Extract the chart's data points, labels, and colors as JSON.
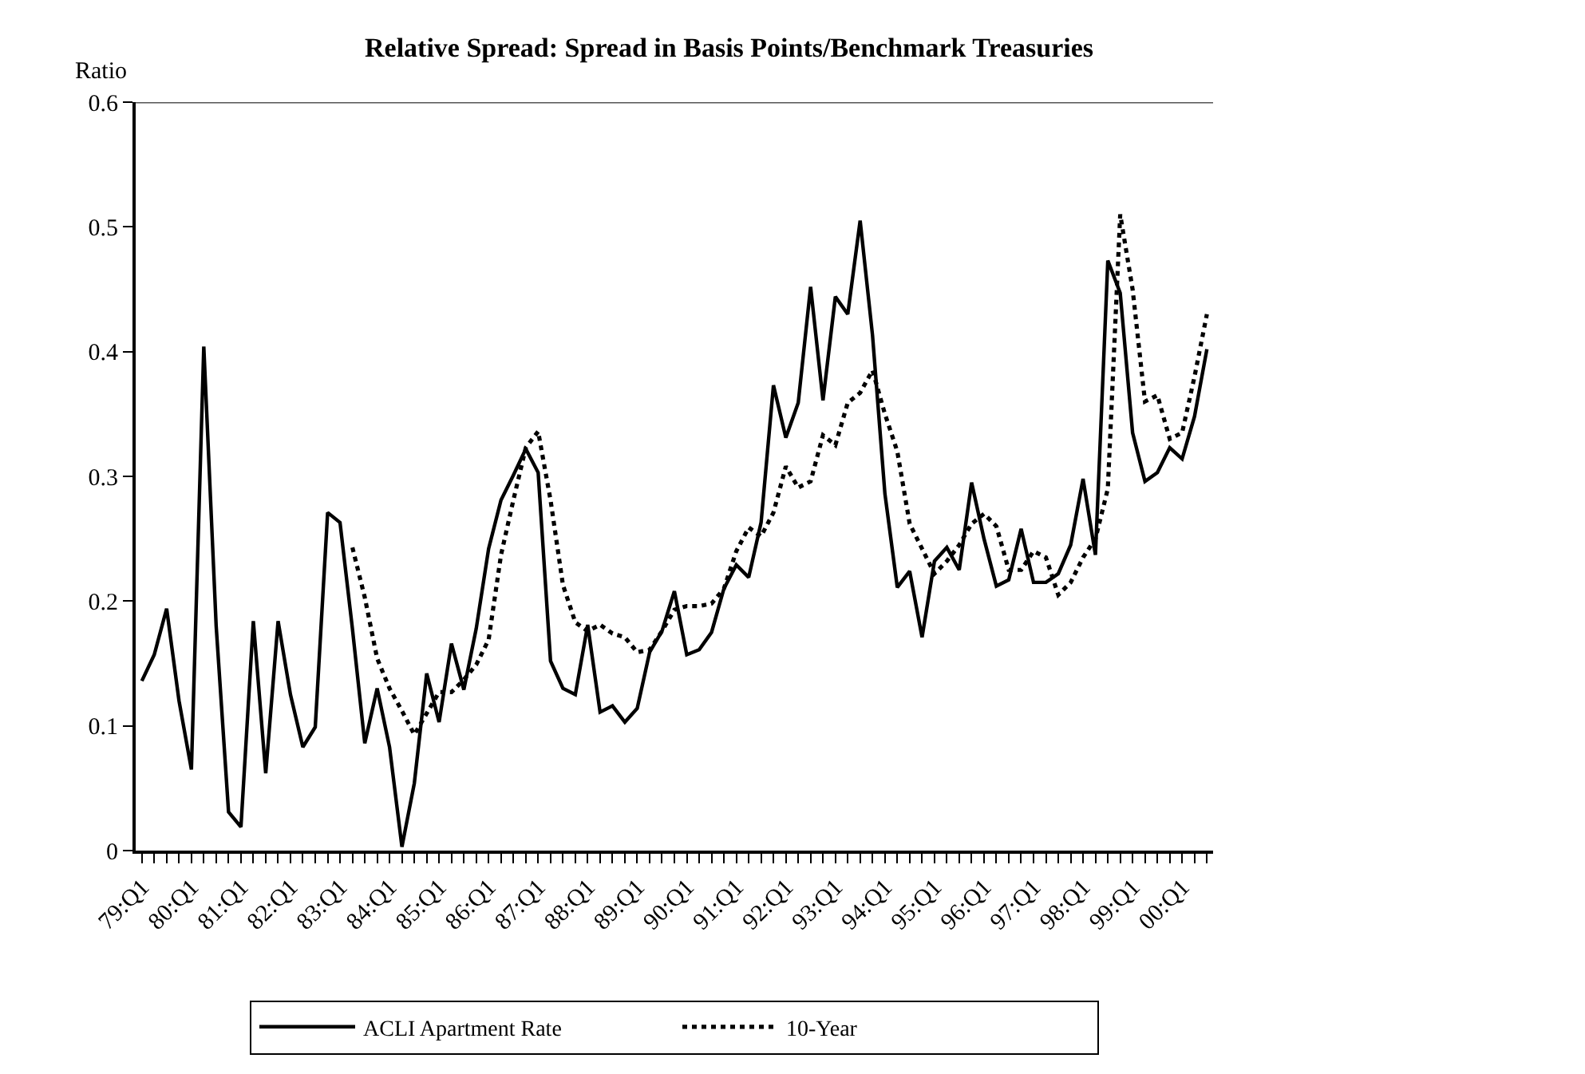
{
  "chart_data": {
    "type": "line",
    "title": "Relative Spread: Spread in Basis Points/Benchmark Treasuries",
    "ylabel": "Ratio",
    "categories": [
      "79:Q1",
      null,
      null,
      null,
      "80:Q1",
      null,
      null,
      null,
      "81:Q1",
      null,
      null,
      null,
      "82:Q1",
      null,
      null,
      null,
      "83:Q1",
      null,
      null,
      null,
      "84:Q1",
      null,
      null,
      null,
      "85:Q1",
      null,
      null,
      null,
      "86:Q1",
      null,
      null,
      null,
      "87:Q1",
      null,
      null,
      null,
      "88:Q1",
      null,
      null,
      null,
      "89:Q1",
      null,
      null,
      null,
      "90:Q1",
      null,
      null,
      null,
      "91:Q1",
      null,
      null,
      null,
      "92:Q1",
      null,
      null,
      null,
      "93:Q1",
      null,
      null,
      null,
      "94:Q1",
      null,
      null,
      null,
      "95:Q1",
      null,
      null,
      null,
      "96:Q1",
      null,
      null,
      null,
      "97:Q1",
      null,
      null,
      null,
      "98:Q1",
      null,
      null,
      null,
      "99:Q1",
      null,
      null,
      null,
      "00:Q1",
      null,
      null
    ],
    "series": [
      {
        "name": "ACLI Apartment Rate",
        "color": "#000000",
        "line_style": "solid",
        "values": [
          0.136,
          0.157,
          0.194,
          0.12,
          0.065,
          0.404,
          0.18,
          0.031,
          0.019,
          0.184,
          0.062,
          0.184,
          0.125,
          0.083,
          0.099,
          0.271,
          0.263,
          0.178,
          0.086,
          0.13,
          0.083,
          0.003,
          0.054,
          0.142,
          0.103,
          0.166,
          0.129,
          0.178,
          0.242,
          0.281,
          0.301,
          0.322,
          0.303,
          0.152,
          0.13,
          0.125,
          0.181,
          0.111,
          0.116,
          0.103,
          0.114,
          0.159,
          0.176,
          0.208,
          0.157,
          0.161,
          0.175,
          0.21,
          0.229,
          0.219,
          0.263,
          0.373,
          0.331,
          0.359,
          0.452,
          0.361,
          0.444,
          0.43,
          0.505,
          0.413,
          0.286,
          0.211,
          0.224,
          0.171,
          0.232,
          0.243,
          0.225,
          0.295,
          0.25,
          0.212,
          0.217,
          0.258,
          0.215,
          0.215,
          0.222,
          0.245,
          0.298,
          0.237,
          0.473,
          0.447,
          0.335,
          0.296,
          0.303,
          0.323,
          0.314,
          0.348,
          0.402
        ]
      },
      {
        "name": "10-Year",
        "color": "#000000",
        "line_style": "dotted",
        "values": [
          null,
          null,
          null,
          null,
          null,
          null,
          null,
          null,
          null,
          null,
          null,
          null,
          null,
          null,
          null,
          null,
          null,
          0.243,
          0.203,
          0.154,
          0.13,
          0.112,
          0.093,
          0.11,
          0.127,
          0.127,
          0.137,
          0.149,
          0.169,
          0.237,
          0.281,
          0.323,
          0.336,
          0.281,
          0.213,
          0.183,
          0.176,
          0.181,
          0.174,
          0.171,
          0.159,
          0.161,
          0.176,
          0.193,
          0.196,
          0.196,
          0.198,
          0.21,
          0.24,
          0.259,
          0.252,
          0.271,
          0.308,
          0.291,
          0.296,
          0.333,
          0.325,
          0.359,
          0.367,
          0.385,
          0.35,
          0.32,
          0.262,
          0.242,
          0.222,
          0.232,
          0.245,
          0.262,
          0.27,
          0.26,
          0.225,
          0.225,
          0.24,
          0.235,
          0.205,
          0.215,
          0.235,
          0.25,
          0.29,
          0.51,
          0.45,
          0.36,
          0.365,
          0.33,
          0.335,
          0.38,
          0.43
        ]
      }
    ],
    "ylim": [
      0,
      0.6
    ],
    "yticks": [
      0,
      0.1,
      0.2,
      0.3,
      0.4,
      0.5,
      0.6
    ],
    "grid": false,
    "legend": "bottom",
    "marker": "none"
  }
}
